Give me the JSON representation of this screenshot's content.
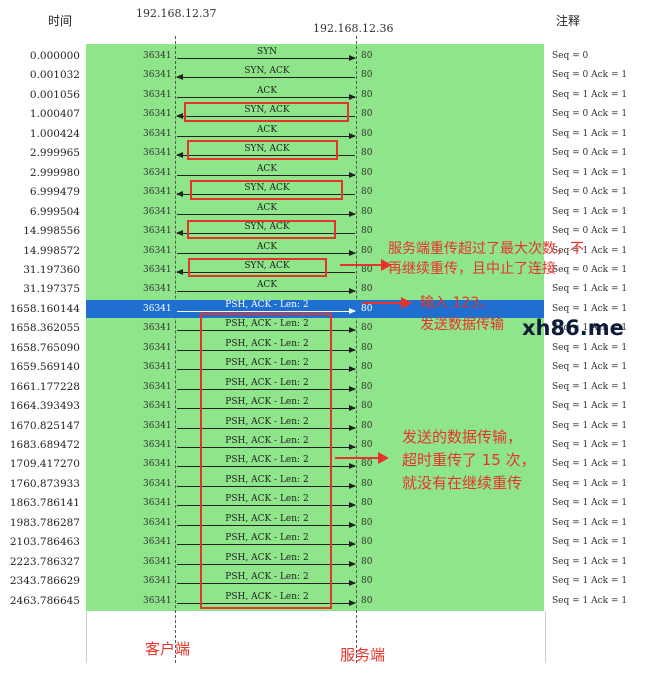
{
  "header": {
    "time_label": "时间",
    "note_label": "注释",
    "client_ip": "192.168.12.37",
    "server_ip": "192.168.12.36"
  },
  "rows": [
    {
      "time": "0.000000",
      "src": "36341",
      "dst": "80",
      "label": "SYN",
      "dir": "right",
      "note": "Seq = 0"
    },
    {
      "time": "0.001032",
      "src": "36341",
      "dst": "80",
      "label": "SYN, ACK",
      "dir": "left",
      "note": "Seq = 0 Ack = 1"
    },
    {
      "time": "0.001056",
      "src": "36341",
      "dst": "80",
      "label": "ACK",
      "dir": "right",
      "note": "Seq = 1 Ack = 1"
    },
    {
      "time": "1.000407",
      "src": "36341",
      "dst": "80",
      "label": "SYN, ACK",
      "dir": "left",
      "note": "Seq = 0 Ack = 1"
    },
    {
      "time": "1.000424",
      "src": "36341",
      "dst": "80",
      "label": "ACK",
      "dir": "right",
      "note": "Seq = 1 Ack = 1"
    },
    {
      "time": "2.999965",
      "src": "36341",
      "dst": "80",
      "label": "SYN, ACK",
      "dir": "left",
      "note": "Seq = 0 Ack = 1"
    },
    {
      "time": "2.999980",
      "src": "36341",
      "dst": "80",
      "label": "ACK",
      "dir": "right",
      "note": "Seq = 1 Ack = 1"
    },
    {
      "time": "6.999479",
      "src": "36341",
      "dst": "80",
      "label": "SYN, ACK",
      "dir": "left",
      "note": "Seq = 0 Ack = 1"
    },
    {
      "time": "6.999504",
      "src": "36341",
      "dst": "80",
      "label": "ACK",
      "dir": "right",
      "note": "Seq = 1 Ack = 1"
    },
    {
      "time": "14.998556",
      "src": "36341",
      "dst": "80",
      "label": "SYN, ACK",
      "dir": "left",
      "note": "Seq = 0 Ack = 1"
    },
    {
      "time": "14.998572",
      "src": "36341",
      "dst": "80",
      "label": "ACK",
      "dir": "right",
      "note": "Seq = 1 Ack = 1"
    },
    {
      "time": "31.197360",
      "src": "36341",
      "dst": "80",
      "label": "SYN, ACK",
      "dir": "left",
      "note": "Seq = 0 Ack = 1"
    },
    {
      "time": "31.197375",
      "src": "36341",
      "dst": "80",
      "label": "ACK",
      "dir": "right",
      "note": "Seq = 1 Ack = 1"
    },
    {
      "time": "1658.160144",
      "src": "36341",
      "dst": "80",
      "label": "PSH, ACK - Len: 2",
      "dir": "right",
      "note": "Seq = 1 Ack = 1",
      "selected": true
    },
    {
      "time": "1658.362055",
      "src": "36341",
      "dst": "80",
      "label": "PSH, ACK - Len: 2",
      "dir": "right",
      "note": "Seq = 1 Ack = 1"
    },
    {
      "time": "1658.765090",
      "src": "36341",
      "dst": "80",
      "label": "PSH, ACK - Len: 2",
      "dir": "right",
      "note": "Seq = 1 Ack = 1"
    },
    {
      "time": "1659.569140",
      "src": "36341",
      "dst": "80",
      "label": "PSH, ACK - Len: 2",
      "dir": "right",
      "note": "Seq = 1 Ack = 1"
    },
    {
      "time": "1661.177228",
      "src": "36341",
      "dst": "80",
      "label": "PSH, ACK - Len: 2",
      "dir": "right",
      "note": "Seq = 1 Ack = 1"
    },
    {
      "time": "1664.393493",
      "src": "36341",
      "dst": "80",
      "label": "PSH, ACK - Len: 2",
      "dir": "right",
      "note": "Seq = 1 Ack = 1"
    },
    {
      "time": "1670.825147",
      "src": "36341",
      "dst": "80",
      "label": "PSH, ACK - Len: 2",
      "dir": "right",
      "note": "Seq = 1 Ack = 1"
    },
    {
      "time": "1683.689472",
      "src": "36341",
      "dst": "80",
      "label": "PSH, ACK - Len: 2",
      "dir": "right",
      "note": "Seq = 1 Ack = 1"
    },
    {
      "time": "1709.417270",
      "src": "36341",
      "dst": "80",
      "label": "PSH, ACK - Len: 2",
      "dir": "right",
      "note": "Seq = 1 Ack = 1"
    },
    {
      "time": "1760.873933",
      "src": "36341",
      "dst": "80",
      "label": "PSH, ACK - Len: 2",
      "dir": "right",
      "note": "Seq = 1 Ack = 1"
    },
    {
      "time": "1863.786141",
      "src": "36341",
      "dst": "80",
      "label": "PSH, ACK - Len: 2",
      "dir": "right",
      "note": "Seq = 1 Ack = 1"
    },
    {
      "time": "1983.786287",
      "src": "36341",
      "dst": "80",
      "label": "PSH, ACK - Len: 2",
      "dir": "right",
      "note": "Seq = 1 Ack = 1"
    },
    {
      "time": "2103.786463",
      "src": "36341",
      "dst": "80",
      "label": "PSH, ACK - Len: 2",
      "dir": "right",
      "note": "Seq = 1 Ack = 1"
    },
    {
      "time": "2223.786327",
      "src": "36341",
      "dst": "80",
      "label": "PSH, ACK - Len: 2",
      "dir": "right",
      "note": "Seq = 1 Ack = 1"
    },
    {
      "time": "2343.786629",
      "src": "36341",
      "dst": "80",
      "label": "PSH, ACK - Len: 2",
      "dir": "right",
      "note": "Seq = 1 Ack = 1"
    },
    {
      "time": "2463.786645",
      "src": "36341",
      "dst": "80",
      "label": "PSH, ACK - Len: 2",
      "dir": "right",
      "note": "Seq = 1 Ack = 1"
    }
  ],
  "annotations": {
    "server_retrans_line1": "服务端重传超过了最大次数，不",
    "server_retrans_line2": "再继续重传，且中止了连接",
    "input_line1": "输入 123，",
    "input_line2": "发送数据传输",
    "data_retrans_line1": "发送的数据传输，",
    "data_retrans_line2": "超时重传了 15 次，",
    "data_retrans_line3": "就没有在继续重传",
    "client_label": "客户端",
    "server_label": "服务端"
  },
  "watermark": "xh86.me",
  "colors": {
    "flow_background": "#8fe58a",
    "selected_row": "#1f6fd1",
    "annotation_red": "#e8332a"
  }
}
